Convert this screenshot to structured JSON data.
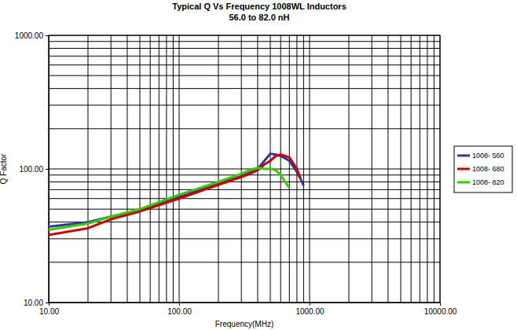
{
  "chart_data": {
    "type": "line",
    "title": "Typical Q Vs Frequency 1008WL Inductors",
    "subtitle": "56.0 to 82.0 nH",
    "x_label": "Frequency(MHz)",
    "y_label": "Q Factor",
    "log": true,
    "grid": true,
    "legend": "right",
    "xlim": [
      10,
      10000
    ],
    "ylim": [
      10,
      1000
    ],
    "xticks": [
      {
        "value": 10,
        "label": "10.00"
      },
      {
        "value": 100,
        "label": "100.00"
      },
      {
        "value": 1000,
        "label": "1000.00"
      },
      {
        "value": 10000,
        "label": "10000.00"
      }
    ],
    "yticks": [
      {
        "value": 10,
        "label": "10.00"
      },
      {
        "value": 100,
        "label": "100.00"
      },
      {
        "value": 1000,
        "label": "1000.00"
      }
    ],
    "x": [
      10,
      20,
      30,
      50,
      100,
      200,
      300,
      350,
      400,
      450,
      500,
      550,
      600,
      650,
      700,
      800,
      850,
      900
    ],
    "series": [
      {
        "name": "1008- 560",
        "color": "#3333a0",
        "values": [
          37,
          40,
          44,
          49,
          62,
          78,
          88,
          94,
          100,
          115,
          130,
          128,
          125,
          120,
          115,
          95,
          85,
          75
        ]
      },
      {
        "name": "1008- 680",
        "color": "#cc0000",
        "values": [
          32,
          36,
          42,
          48,
          60,
          76,
          87,
          92,
          98,
          108,
          115,
          125,
          128,
          125,
          122,
          100,
          85,
          null
        ]
      },
      {
        "name": "1008- 820",
        "color": "#33cc00",
        "values": [
          35,
          39,
          44,
          50,
          64,
          80,
          92,
          98,
          102,
          100,
          100,
          98,
          90,
          80,
          72,
          null,
          null,
          null
        ]
      }
    ]
  }
}
